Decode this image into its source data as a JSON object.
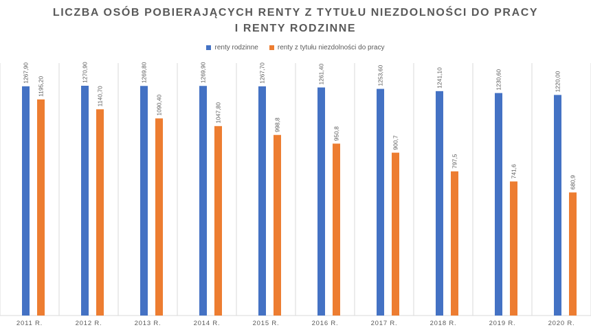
{
  "title_line1": "LICZBA OSÓB POBIERAJĄCYCH RENTY Z TYTUŁU NIEZDOLNOŚCI DO PRACY",
  "title_line2": "I RENTY RODZINNE",
  "colors": {
    "series1": "#4472C4",
    "series2": "#ED7D31",
    "grid": "#D9D9D9",
    "text": "#595959"
  },
  "chart_data": {
    "type": "bar",
    "title": "LICZBA OSÓB POBIERAJĄCYCH RENTY Z TYTUŁU NIEZDOLNOŚCI DO PRACY I RENTY RODZINNE",
    "categories": [
      "2011 R.",
      "2012 R.",
      "2013 R.",
      "2014 R.",
      "2015 R.",
      "2016 R.",
      "2017 R.",
      "2018 R.",
      "2019 R.",
      "2020 R."
    ],
    "series": [
      {
        "name": "renty rodzinne",
        "values": [
          1267.9,
          1270.9,
          1269.8,
          1269.9,
          1267.7,
          1261.4,
          1253.6,
          1241.1,
          1230.6,
          1220.0
        ],
        "labels": [
          "1267,90",
          "1270,90",
          "1269,80",
          "1269,90",
          "1267,70",
          "1261,40",
          "1253,60",
          "1241,10",
          "1230,60",
          "1220,00"
        ]
      },
      {
        "name": "renty z tytułu niezdolności do pracy",
        "values": [
          1195.2,
          1140.7,
          1090.4,
          1047.8,
          998.8,
          950.8,
          900.7,
          797.5,
          741.6,
          680.9
        ],
        "labels": [
          "1195,20",
          "1140,70",
          "1090,40",
          "1047,80",
          "998,8",
          "950,8",
          "900,7",
          "797,5",
          "741,6",
          "680,9"
        ]
      }
    ],
    "ylim": [
      0,
      1300
    ],
    "legend_position": "top",
    "grid": "vertical category separators"
  }
}
